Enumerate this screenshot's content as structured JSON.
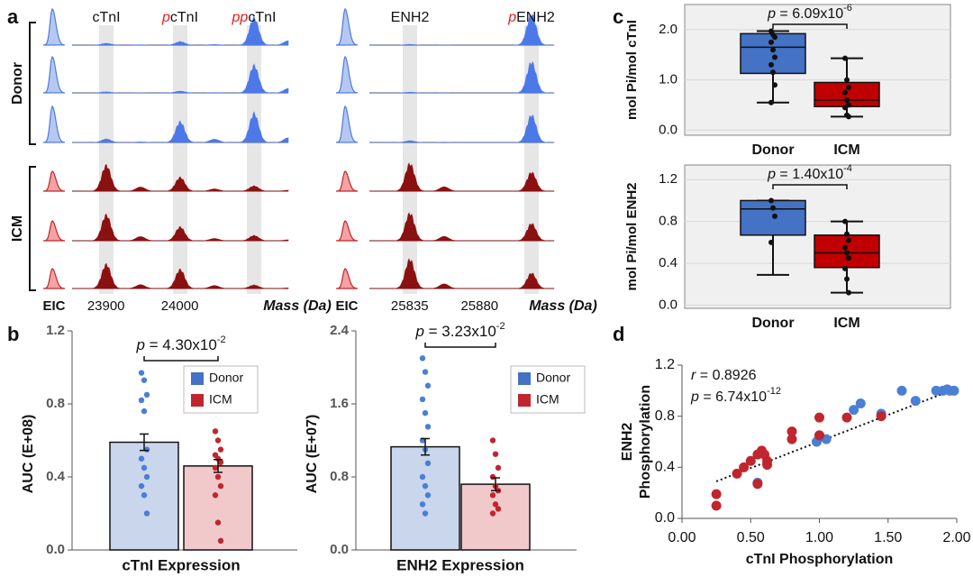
{
  "chart_data": [
    {
      "type": "spectra",
      "panel": "a",
      "xlim": [
        23854,
        24147
      ],
      "xticks": [
        23900,
        24000
      ],
      "xlabel": "Mass (Da)",
      "eic_label": "EIC",
      "groups": [
        "Donor",
        "ICM"
      ],
      "peak_labels": [
        {
          "name": "cTnI"
        },
        {
          "prefix": "p",
          "name": "cTnI"
        },
        {
          "prefix": "pp",
          "name": "cTnI"
        }
      ]
    },
    {
      "type": "spectra",
      "xlim": [
        25809,
        25928
      ],
      "xticks": [
        25835,
        25880
      ],
      "xlabel": "Mass (Da)",
      "eic_label": "EIC",
      "peak_labels": [
        {
          "name": "ENH2"
        },
        {
          "prefix": "p",
          "name": "ENH2"
        }
      ]
    },
    {
      "type": "box",
      "panel": "c",
      "categories": [
        "Donor",
        "ICM"
      ],
      "colors": [
        "#4472c4",
        "#c00000"
      ],
      "ylabel": "mol Pi/mol cTnI",
      "ylim": [
        -0.1,
        2.5
      ],
      "yticks": [
        {
          "value": 0,
          "label": "0.0"
        },
        {
          "value": 1,
          "label": "1.0"
        },
        {
          "value": 2,
          "label": "2.0"
        }
      ],
      "boxes": [
        {
          "whislo": 0.55,
          "q1": 1.13,
          "median": 1.65,
          "q3": 1.92,
          "whishi": 1.97,
          "points": [
            1.97,
            1.9,
            1.85,
            1.75,
            1.6,
            1.45,
            1.3,
            1.15,
            0.9,
            0.55
          ]
        },
        {
          "whislo": 0.27,
          "q1": 0.47,
          "median": 0.6,
          "q3": 0.95,
          "whishi": 1.43,
          "points": [
            1.43,
            1.0,
            0.85,
            0.75,
            0.6,
            0.5,
            0.45,
            0.3,
            0.27
          ]
        }
      ],
      "annotation": {
        "p": "p",
        "text": " = 6.09x10",
        "sup": "-6"
      }
    },
    {
      "type": "box",
      "categories": [
        "Donor",
        "ICM"
      ],
      "colors": [
        "#4472c4",
        "#c00000"
      ],
      "ylabel": "mol Pi/mol ENH2",
      "ylim": [
        -0.03,
        1.34
      ],
      "yticks": [
        {
          "value": 0,
          "label": "0.0"
        },
        0.4,
        0.8,
        1.2
      ],
      "boxes": [
        {
          "whislo": 0.29,
          "q1": 0.67,
          "median": 0.92,
          "q3": 1.0,
          "whishi": 1.0,
          "points": [
            1.0,
            0.93,
            0.85,
            0.6
          ]
        },
        {
          "whislo": 0.12,
          "q1": 0.36,
          "median": 0.5,
          "q3": 0.67,
          "whishi": 0.8,
          "points": [
            0.8,
            0.68,
            0.62,
            0.55,
            0.5,
            0.45,
            0.35,
            0.25,
            0.12
          ]
        }
      ],
      "annotation": {
        "p": "p",
        "text": " = 1.40x10",
        "sup": "-4"
      }
    },
    {
      "type": "bar",
      "panel": "b",
      "categories": [
        "Donor",
        "ICM"
      ],
      "values": [
        0.59,
        0.46
      ],
      "errors": [
        0.045,
        0.035
      ],
      "colors": [
        "#c9d6ec",
        "#f1c9cb"
      ],
      "point_colors": [
        "#4a7fd4",
        "#c0262d"
      ],
      "points": [
        [
          0.97,
          0.93,
          0.85,
          0.82,
          0.76,
          0.55,
          0.5,
          0.45,
          0.4,
          0.35,
          0.3,
          0.2
        ],
        [
          0.65,
          0.6,
          0.55,
          0.52,
          0.5,
          0.48,
          0.45,
          0.4,
          0.35,
          0.3,
          0.15,
          0.05
        ]
      ],
      "ylabel": "AUC (E+08)",
      "xlabel": "cTnI Expression",
      "ylim": [
        0,
        1.2
      ],
      "yticks": [
        {
          "value": 0,
          "label": "0.0"
        },
        0.4,
        0.8,
        1.2
      ],
      "legend": "upper right",
      "annotation": {
        "p": "p",
        "text": " = 4.30x10",
        "sup": "-2"
      }
    },
    {
      "type": "bar",
      "categories": [
        "Donor",
        "ICM"
      ],
      "values": [
        1.13,
        0.72
      ],
      "errors": [
        0.09,
        0.07
      ],
      "colors": [
        "#c9d6ec",
        "#f1c9cb"
      ],
      "point_colors": [
        "#4a7fd4",
        "#c0262d"
      ],
      "points": [
        [
          2.1,
          1.95,
          1.8,
          1.65,
          1.5,
          1.35,
          1.2,
          1.1,
          0.95,
          0.8,
          0.7,
          0.6,
          0.5,
          0.4
        ],
        [
          1.2,
          1.05,
          0.9,
          0.8,
          0.7,
          0.65,
          0.6,
          0.5,
          0.45,
          0.4
        ]
      ],
      "ylabel": "AUC (E+07)",
      "xlabel": "ENH2 Expression",
      "ylim": [
        0,
        2.4
      ],
      "yticks": [
        {
          "value": 0,
          "label": "0.0"
        },
        0.8,
        1.6,
        2.4
      ],
      "legend": "upper right",
      "annotation": {
        "p": "p",
        "text": " = 3.23x10",
        "sup": "-2"
      }
    },
    {
      "type": "scatter",
      "panel": "d",
      "xlim": [
        0,
        2.0
      ],
      "ylim": [
        0,
        1.2
      ],
      "xticks": [
        {
          "value": 0,
          "label": "0.00"
        },
        {
          "value": 0.5,
          "label": "0.50"
        },
        {
          "value": 1,
          "label": "1.00"
        },
        {
          "value": 1.5,
          "label": "1.50"
        },
        {
          "value": 2,
          "label": "2.00"
        }
      ],
      "yticks": [
        {
          "value": 0,
          "label": "0.0"
        },
        0.4,
        0.8,
        1.2
      ],
      "xlabel": "cTnI Phosphorylation",
      "ylabel": [
        "ENH2",
        "Phosphorylation"
      ],
      "series": [
        {
          "color": "#4a7fd4",
          "x": [
            0.55,
            0.98,
            1.05,
            1.0,
            1.25,
            1.3,
            1.45,
            1.6,
            1.7,
            1.85,
            1.9,
            1.95,
            1.98,
            1.93
          ],
          "y": [
            0.28,
            0.6,
            0.62,
            0.65,
            0.85,
            0.9,
            0.82,
            1.0,
            0.92,
            1.0,
            1.0,
            1.0,
            1.0,
            1.01
          ]
        },
        {
          "color": "#c0262d",
          "x": [
            0.25,
            0.25,
            0.4,
            0.45,
            0.5,
            0.55,
            0.55,
            0.58,
            0.6,
            0.62,
            0.62,
            0.8,
            0.8,
            1.0,
            1.0,
            1.2,
            1.45
          ],
          "y": [
            0.1,
            0.19,
            0.35,
            0.4,
            0.45,
            0.5,
            0.27,
            0.53,
            0.5,
            0.45,
            0.42,
            0.62,
            0.68,
            0.65,
            0.79,
            0.79,
            0.8
          ]
        }
      ],
      "trend": {
        "x": [
          0.25,
          1.98
        ],
        "y": [
          0.29,
          1.01
        ]
      },
      "annotation": [
        {
          "p": "r",
          "text": " = 0.8926"
        },
        {
          "p": "p",
          "text": " = 6.74x10",
          "sup": "-12"
        }
      ]
    }
  ]
}
